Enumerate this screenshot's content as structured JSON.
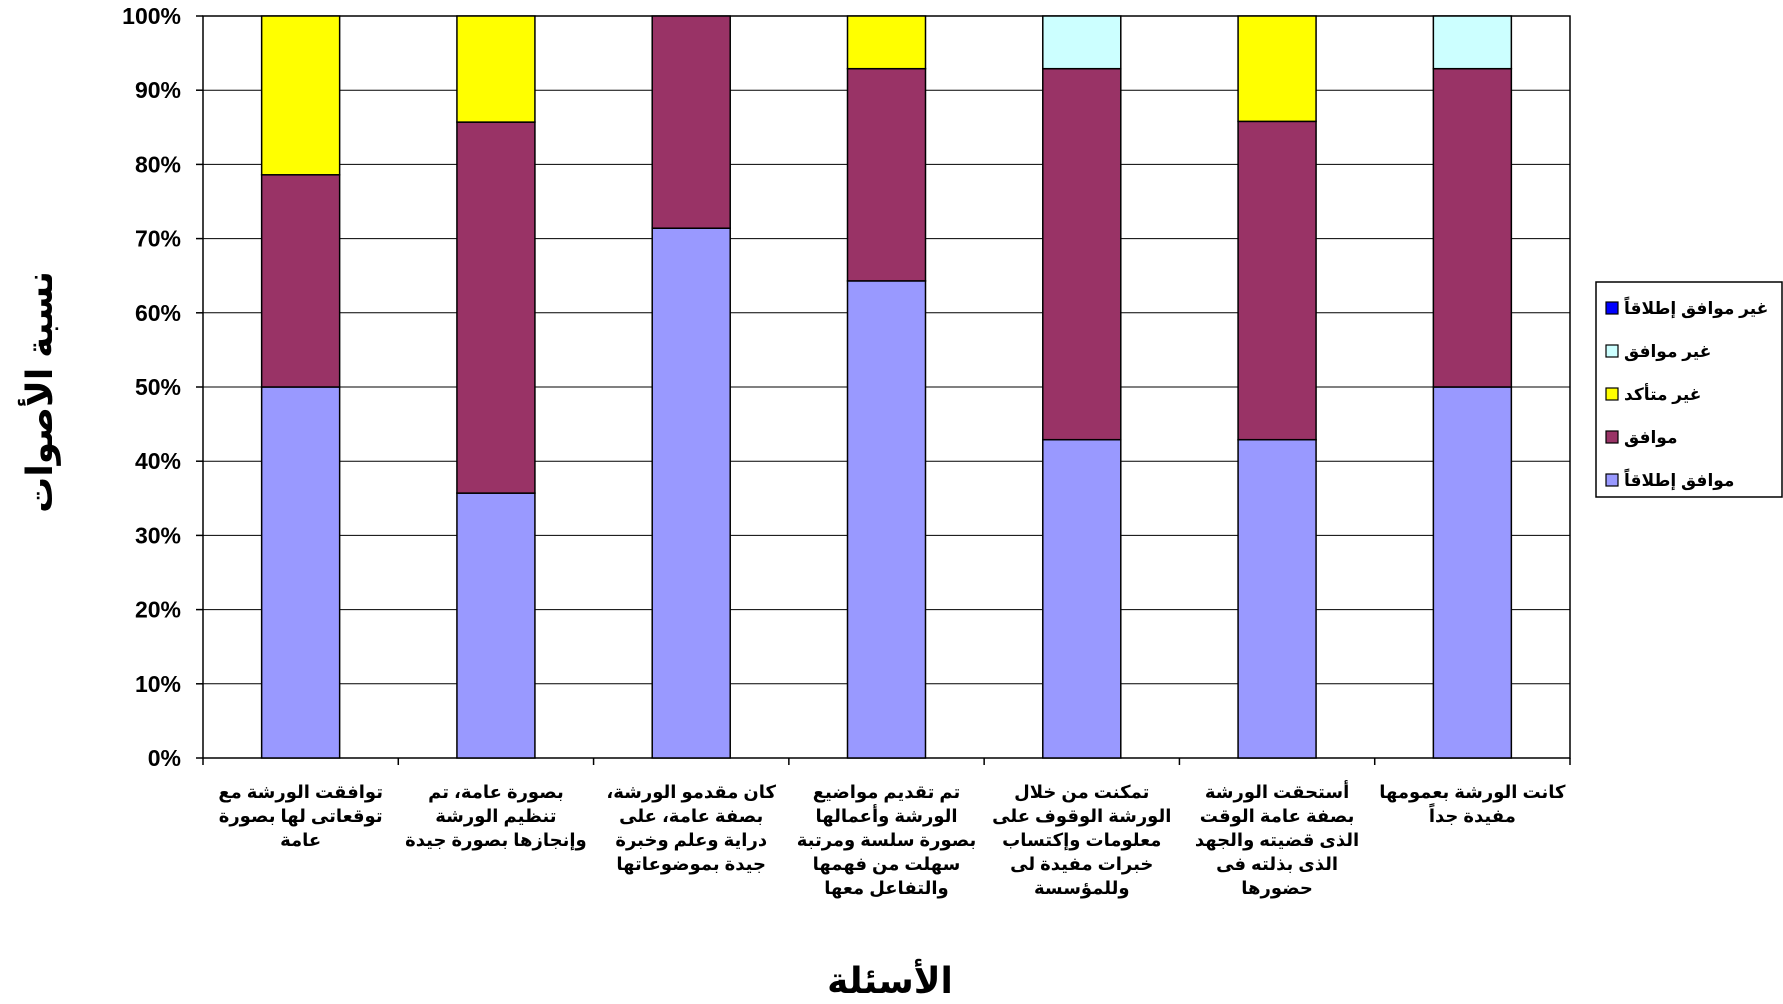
{
  "chart_data": {
    "type": "bar",
    "stacked": true,
    "percent": true,
    "xlabel": "الأسئلة",
    "ylabel": "نسبة الأصوات",
    "ylim": [
      0,
      100
    ],
    "yticks": [
      "0%",
      "10%",
      "20%",
      "30%",
      "40%",
      "50%",
      "60%",
      "70%",
      "80%",
      "90%",
      "100%"
    ],
    "grid": true,
    "legend_position": "right",
    "categories": [
      [
        "توافقت الورشة مع",
        "توقعاتى لها بصورة",
        "عامة"
      ],
      [
        "بصورة عامة، تم",
        "تنظيم الورشة",
        "وإنجازها بصورة جيدة"
      ],
      [
        "كان مقدمو الورشة،",
        "بصفة عامة، على",
        "دراية وعلم وخبرة",
        "جيدة بموضوعاتها"
      ],
      [
        "تم تقديم مواضيع",
        "الورشة وأعمالها",
        "بصورة سلسة ومرتبة",
        "سهلت من فهمها",
        "والتفاعل معها"
      ],
      [
        "تمكنت من خلال",
        "الورشة الوقوف على",
        "معلومات وإكتساب",
        "خبرات مفيدة لى",
        "وللمؤسسة"
      ],
      [
        "أستحقت الورشة",
        "بصفة عامة الوقت",
        "الذى قضيته والجهد",
        "الذى بذلته فى",
        "حضورها"
      ],
      [
        "كانت الورشة بعمومها",
        "مفيدة جداً"
      ]
    ],
    "series": [
      {
        "name": "موافق إطلاقاً",
        "color": "#9999ff",
        "values": [
          50.0,
          35.7,
          71.4,
          64.3,
          42.9,
          42.9,
          50.0
        ]
      },
      {
        "name": "موافق",
        "color": "#993366",
        "values": [
          28.6,
          50.0,
          28.6,
          28.6,
          50.0,
          42.9,
          42.9
        ]
      },
      {
        "name": "غير متأكد",
        "color": "#ffff00",
        "values": [
          21.4,
          14.3,
          0,
          7.1,
          0,
          14.2,
          0
        ]
      },
      {
        "name": "غير موافق",
        "color": "#ccffff",
        "values": [
          0,
          0,
          0,
          0,
          7.1,
          0,
          7.1
        ]
      },
      {
        "name": "غير موافق إطلاقاً",
        "color": "#0000ff",
        "values": [
          0,
          0,
          0,
          0,
          0,
          0,
          0
        ]
      }
    ],
    "legend_order": [
      "غير موافق إطلاقاً",
      "غير موافق",
      "غير متأكد",
      "موافق",
      "موافق إطلاقاً"
    ]
  }
}
